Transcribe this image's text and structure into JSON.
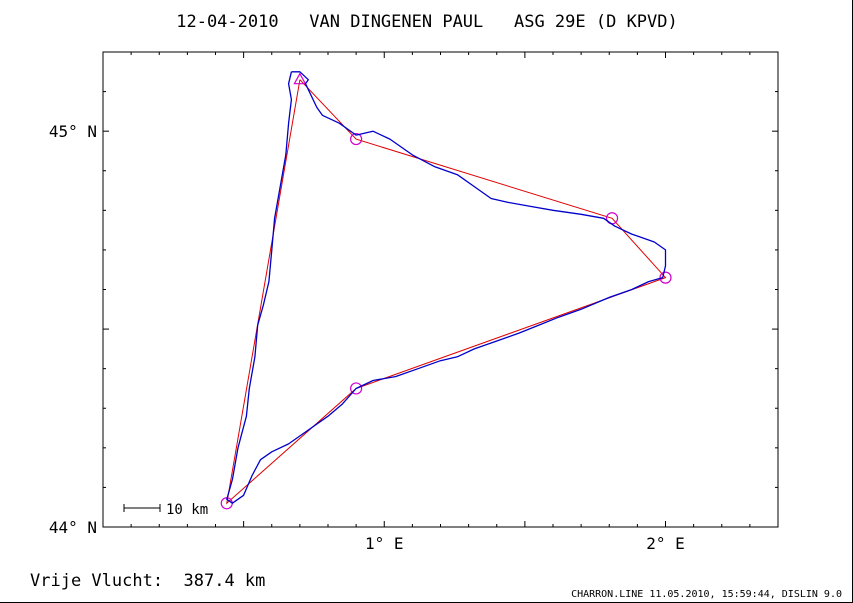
{
  "chart_data": {
    "type": "line",
    "title": "12-04-2010   VAN DINGENEN PAUL   ASG 29E (D KPVD)",
    "xlim": [
      0.0,
      2.4
    ],
    "ylim": [
      44.0,
      45.2
    ],
    "x_ticks": [
      {
        "value": 1.0,
        "label": "1° E"
      },
      {
        "value": 2.0,
        "label": "2° E"
      }
    ],
    "y_ticks": [
      {
        "value": 44.0,
        "label": "44° N"
      },
      {
        "value": 45.0,
        "label": "45° N"
      }
    ],
    "scale_bar_label": "10 km",
    "series": [
      {
        "role": "task",
        "color": "#e00000",
        "points": [
          [
            0.7,
            45.13
          ],
          [
            0.9,
            44.98
          ],
          [
            1.81,
            44.78
          ],
          [
            2.0,
            44.63
          ],
          [
            0.9,
            44.35
          ],
          [
            0.44,
            44.06
          ],
          [
            0.7,
            45.13
          ]
        ]
      },
      {
        "role": "turnpoints",
        "color": "#d000d0",
        "points": [
          [
            0.9,
            44.98
          ],
          [
            1.81,
            44.78
          ],
          [
            2.0,
            44.63
          ],
          [
            0.9,
            44.35
          ],
          [
            0.44,
            44.06
          ]
        ],
        "start": [
          0.7,
          45.13
        ]
      },
      {
        "role": "track",
        "color": "#0000cc",
        "points": [
          [
            0.67,
            45.15
          ],
          [
            0.7,
            45.15
          ],
          [
            0.73,
            45.13
          ],
          [
            0.72,
            45.12
          ],
          [
            0.76,
            45.06
          ],
          [
            0.78,
            45.04
          ],
          [
            0.84,
            45.02
          ],
          [
            0.9,
            44.99
          ],
          [
            0.96,
            45.0
          ],
          [
            1.02,
            44.98
          ],
          [
            1.1,
            44.94
          ],
          [
            1.18,
            44.91
          ],
          [
            1.26,
            44.89
          ],
          [
            1.32,
            44.86
          ],
          [
            1.38,
            44.83
          ],
          [
            1.44,
            44.82
          ],
          [
            1.52,
            44.81
          ],
          [
            1.6,
            44.8
          ],
          [
            1.7,
            44.79
          ],
          [
            1.78,
            44.78
          ],
          [
            1.82,
            44.76
          ],
          [
            1.88,
            44.74
          ],
          [
            1.96,
            44.72
          ],
          [
            2.0,
            44.7
          ],
          [
            2.0,
            44.66
          ],
          [
            1.99,
            44.63
          ],
          [
            1.94,
            44.62
          ],
          [
            1.88,
            44.6
          ],
          [
            1.8,
            44.58
          ],
          [
            1.7,
            44.55
          ],
          [
            1.62,
            44.53
          ],
          [
            1.55,
            44.51
          ],
          [
            1.48,
            44.49
          ],
          [
            1.4,
            44.47
          ],
          [
            1.32,
            44.45
          ],
          [
            1.26,
            44.43
          ],
          [
            1.2,
            44.42
          ],
          [
            1.12,
            44.4
          ],
          [
            1.04,
            44.38
          ],
          [
            0.96,
            44.37
          ],
          [
            0.9,
            44.35
          ],
          [
            0.85,
            44.31
          ],
          [
            0.8,
            44.28
          ],
          [
            0.72,
            44.24
          ],
          [
            0.66,
            44.21
          ],
          [
            0.6,
            44.19
          ],
          [
            0.56,
            44.17
          ],
          [
            0.53,
            44.13
          ],
          [
            0.5,
            44.08
          ],
          [
            0.46,
            44.06
          ],
          [
            0.44,
            44.07
          ],
          [
            0.46,
            44.12
          ],
          [
            0.48,
            44.2
          ],
          [
            0.51,
            44.28
          ],
          [
            0.52,
            44.35
          ],
          [
            0.54,
            44.43
          ],
          [
            0.55,
            44.51
          ],
          [
            0.57,
            44.56
          ],
          [
            0.59,
            44.62
          ],
          [
            0.6,
            44.7
          ],
          [
            0.61,
            44.78
          ],
          [
            0.63,
            44.86
          ],
          [
            0.65,
            44.94
          ],
          [
            0.66,
            45.02
          ],
          [
            0.67,
            45.08
          ],
          [
            0.66,
            45.12
          ],
          [
            0.67,
            45.15
          ]
        ]
      }
    ],
    "annotations": {
      "distance": "Vrije Vlucht:  387.4 km",
      "footer": "CHARRON.LINE 11.05.2010, 15:59:44, DISLIN 9.0"
    }
  }
}
